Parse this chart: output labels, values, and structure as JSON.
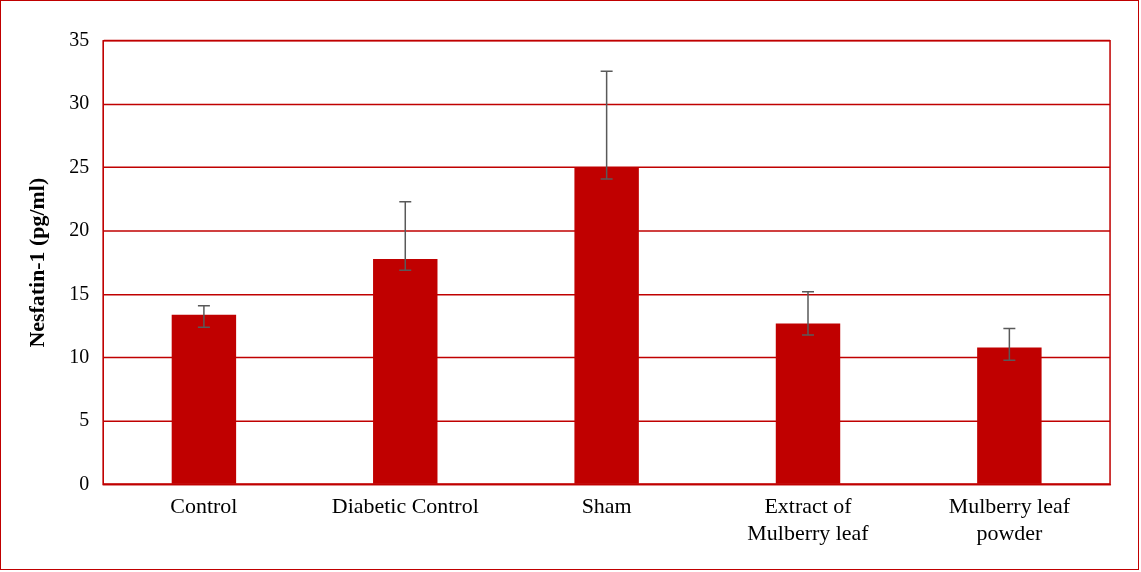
{
  "chart_data": {
    "type": "bar",
    "ylabel": "Nesfatin-1 (pg/ml)",
    "categories": [
      "Control",
      "Diabetic Control",
      "Sham",
      "Extract of Mulberry leaf",
      "Mulberry leaf powder"
    ],
    "values": [
      13.4,
      17.8,
      25.0,
      12.7,
      10.8
    ],
    "errors": [
      [
        12.4,
        14.1
      ],
      [
        16.9,
        22.3
      ],
      [
        24.1,
        32.6
      ],
      [
        11.8,
        15.2
      ],
      [
        9.8,
        12.3
      ]
    ],
    "color": "#c00000",
    "ylim": [
      0,
      35
    ],
    "yticks": [
      0,
      5,
      10,
      15,
      20,
      25,
      30,
      35
    ],
    "grid": "y"
  }
}
